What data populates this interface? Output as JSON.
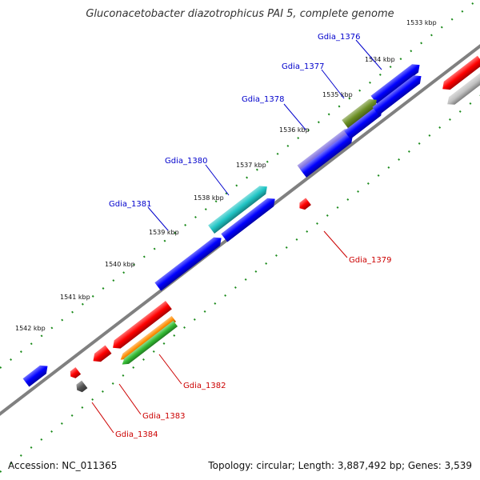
{
  "title": "Gluconacetobacter diazotrophicus PAI 5, complete genome",
  "footer": {
    "accession": "Accession: NC_011365",
    "topology": "Topology: circular; Length: 3,887,492 bp; Genes: 3,539"
  },
  "colors": {
    "backbone": "#808080",
    "dots": "#1a8a1a",
    "forward_label": "#0000cc",
    "reverse_label": "#cc0000"
  },
  "ticks": [
    "1533 kbp",
    "1534 kbp",
    "1535 kbp",
    "1536 kbp",
    "1537 kbp",
    "1538 kbp",
    "1539 kbp",
    "1540 kbp",
    "1541 kbp",
    "1542 kbp"
  ],
  "genes_forward": [
    {
      "name": "Gdia_1376",
      "color": "#0000ff"
    },
    {
      "name": "Gdia_1377",
      "color": "#7766dd"
    },
    {
      "name": "Gdia_1378",
      "color": "#6b8e23"
    },
    {
      "name": "Gdia_1380",
      "color": "#20c5c5"
    },
    {
      "name": "Gdia_1381",
      "color": "#0000ff"
    }
  ],
  "genes_reverse": [
    {
      "name": "Gdia_1379",
      "color": "#ff0000"
    },
    {
      "name": "Gdia_1382",
      "color": "#ff0000"
    },
    {
      "name": "Gdia_1383",
      "color": "#ff0000"
    },
    {
      "name": "Gdia_1384",
      "color": "#555555"
    }
  ]
}
